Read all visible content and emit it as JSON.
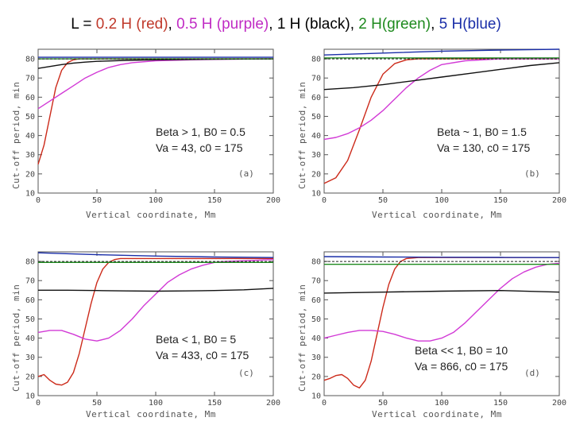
{
  "title": {
    "prefix": "L = ",
    "parts": [
      {
        "text": "0.2 H (red)",
        "color": "#c0392b"
      },
      {
        "text": "0.5 H (purple)",
        "color": "#c02bc4"
      },
      {
        "text": "1 H (black)",
        "color": "#000000"
      },
      {
        "text": "2 H(green)",
        "color": "#1e8a1e"
      },
      {
        "text": "5 H(blue)",
        "color": "#1a2ea8"
      }
    ],
    "separator": ", "
  },
  "chart_data": [
    {
      "type": "line",
      "panel_tag": "(a)",
      "xlabel": "Vertical coordinate, Mm",
      "ylabel": "Cut-off period, min",
      "xlim": [
        0,
        200
      ],
      "ylim": [
        10,
        85
      ],
      "xticks": [
        0,
        50,
        100,
        150,
        200
      ],
      "yticks": [
        10,
        20,
        30,
        40,
        50,
        60,
        70,
        80
      ],
      "annotation": [
        "Beta > 1, B0 = 0.5",
        "Va = 43, c0 = 175"
      ],
      "reference_line": {
        "y": 80,
        "style": "dashed"
      },
      "series": [
        {
          "name": "0.2 H",
          "color": "#cc2a1a",
          "x": [
            0,
            5,
            10,
            15,
            20,
            25,
            30,
            35,
            40,
            50,
            60,
            80,
            100,
            150,
            200
          ],
          "y": [
            25,
            35,
            50,
            65,
            74,
            78,
            79.5,
            80,
            80,
            80,
            80,
            80,
            80,
            80,
            80
          ]
        },
        {
          "name": "0.5 H",
          "color": "#d23ad6",
          "x": [
            0,
            10,
            20,
            30,
            40,
            50,
            60,
            70,
            80,
            100,
            130,
            160,
            200
          ],
          "y": [
            54,
            58,
            62,
            66,
            70,
            73,
            75.5,
            77,
            78,
            79,
            79.5,
            79.8,
            80
          ]
        },
        {
          "name": "1 H",
          "color": "#111111",
          "x": [
            0,
            10,
            20,
            30,
            40,
            50,
            75,
            100,
            150,
            200
          ],
          "y": [
            75,
            76,
            77,
            77.8,
            78.3,
            78.7,
            79.2,
            79.5,
            79.8,
            80
          ]
        },
        {
          "name": "2 H",
          "color": "#1e8a1e",
          "x": [
            0,
            50,
            100,
            150,
            200
          ],
          "y": [
            80,
            80,
            80,
            80,
            80
          ]
        },
        {
          "name": "5 H",
          "color": "#1a2ea8",
          "x": [
            0,
            50,
            100,
            150,
            200
          ],
          "y": [
            80.8,
            80.8,
            80.8,
            80.8,
            80.8
          ]
        }
      ]
    },
    {
      "type": "line",
      "panel_tag": "(b)",
      "xlabel": "Vertical coordinate, Mm",
      "ylabel": "Cut-off period, min",
      "xlim": [
        0,
        200
      ],
      "ylim": [
        10,
        85
      ],
      "xticks": [
        0,
        50,
        100,
        150,
        200
      ],
      "yticks": [
        10,
        20,
        30,
        40,
        50,
        60,
        70,
        80
      ],
      "annotation": [
        "Beta ~ 1, B0 = 1.5",
        "Va = 130, c0 = 175"
      ],
      "reference_line": {
        "y": 80,
        "style": "dashed"
      },
      "series": [
        {
          "name": "0.2 H",
          "color": "#cc2a1a",
          "x": [
            0,
            10,
            20,
            30,
            40,
            50,
            60,
            70,
            80,
            100,
            150,
            200
          ],
          "y": [
            15,
            18,
            27,
            43,
            60,
            72,
            77.5,
            79.5,
            80,
            80,
            80,
            80
          ]
        },
        {
          "name": "0.5 H",
          "color": "#d23ad6",
          "x": [
            0,
            10,
            20,
            30,
            40,
            50,
            60,
            70,
            80,
            90,
            100,
            120,
            150,
            200
          ],
          "y": [
            38,
            39,
            41,
            44,
            48,
            53,
            59,
            65,
            70,
            74,
            77,
            79,
            80,
            80
          ]
        },
        {
          "name": "1 H",
          "color": "#111111",
          "x": [
            0,
            25,
            50,
            75,
            100,
            125,
            150,
            175,
            200
          ],
          "y": [
            64,
            65,
            66.5,
            68.5,
            70.5,
            72.5,
            74.5,
            76.5,
            78
          ]
        },
        {
          "name": "2 H",
          "color": "#1e8a1e",
          "x": [
            0,
            50,
            100,
            150,
            200
          ],
          "y": [
            80.5,
            80.5,
            80.5,
            80.5,
            80.5
          ]
        },
        {
          "name": "5 H",
          "color": "#1a2ea8",
          "x": [
            0,
            50,
            100,
            150,
            200
          ],
          "y": [
            82,
            83,
            84,
            84.6,
            85
          ]
        }
      ]
    },
    {
      "type": "line",
      "panel_tag": "(c)",
      "xlabel": "Vertical coordinate, Mm",
      "ylabel": "Cut-off period, min",
      "xlim": [
        0,
        200
      ],
      "ylim": [
        10,
        85
      ],
      "xticks": [
        0,
        50,
        100,
        150,
        200
      ],
      "yticks": [
        10,
        20,
        30,
        40,
        50,
        60,
        70,
        80
      ],
      "annotation": [
        "Beta < 1, B0 = 5",
        "Va = 433, c0 = 175"
      ],
      "reference_line": {
        "y": 80,
        "style": "dashed"
      },
      "series": [
        {
          "name": "0.2 H",
          "color": "#cc2a1a",
          "x": [
            0,
            5,
            10,
            15,
            20,
            25,
            30,
            35,
            40,
            45,
            50,
            55,
            60,
            65,
            70,
            80,
            100,
            150,
            200
          ],
          "y": [
            20,
            21,
            18,
            16,
            15.5,
            17,
            22,
            32,
            45,
            58,
            69,
            76,
            79.5,
            81,
            81.5,
            81.5,
            81.5,
            81.5,
            81.5
          ]
        },
        {
          "name": "0.5 H",
          "color": "#d23ad6",
          "x": [
            0,
            10,
            20,
            30,
            40,
            50,
            60,
            70,
            80,
            90,
            100,
            110,
            120,
            130,
            140,
            150,
            160,
            180,
            200
          ],
          "y": [
            43,
            44,
            44,
            42,
            39.5,
            38.5,
            40,
            44,
            50,
            57,
            63,
            69,
            73,
            76,
            78,
            79.5,
            80,
            80.5,
            81
          ]
        },
        {
          "name": "1 H",
          "color": "#111111",
          "x": [
            0,
            25,
            50,
            75,
            100,
            125,
            150,
            175,
            200
          ],
          "y": [
            65,
            65,
            64.8,
            64.6,
            64.5,
            64.6,
            64.8,
            65.2,
            66
          ]
        },
        {
          "name": "2 H",
          "color": "#1e8a1e",
          "x": [
            0,
            50,
            100,
            150,
            200
          ],
          "y": [
            79.5,
            79.5,
            79.5,
            79.5,
            79.5
          ]
        },
        {
          "name": "5 H",
          "color": "#1a2ea8",
          "x": [
            0,
            50,
            100,
            150,
            200
          ],
          "y": [
            84.5,
            83.5,
            82.8,
            82.3,
            82
          ]
        }
      ]
    },
    {
      "type": "line",
      "panel_tag": "(d)",
      "xlabel": "Vertical coordinate, Mm",
      "ylabel": "Cut-off period, min",
      "xlim": [
        0,
        200
      ],
      "ylim": [
        10,
        85
      ],
      "xticks": [
        0,
        50,
        100,
        150,
        200
      ],
      "yticks": [
        10,
        20,
        30,
        40,
        50,
        60,
        70,
        80
      ],
      "annotation": [
        "Beta << 1, B0 = 10",
        "Va = 866, c0 = 175"
      ],
      "reference_line": {
        "y": 80,
        "style": "dashed"
      },
      "series": [
        {
          "name": "0.2 H",
          "color": "#cc2a1a",
          "x": [
            0,
            5,
            10,
            15,
            20,
            25,
            30,
            35,
            40,
            45,
            50,
            55,
            60,
            65,
            70,
            80,
            100,
            150,
            200
          ],
          "y": [
            18,
            19,
            20.5,
            21,
            19,
            15.5,
            14,
            18,
            28,
            42,
            56,
            68,
            76,
            80,
            81.5,
            82,
            82,
            82,
            82
          ]
        },
        {
          "name": "0.5 H",
          "color": "#d23ad6",
          "x": [
            0,
            10,
            20,
            30,
            40,
            50,
            60,
            70,
            80,
            90,
            100,
            110,
            120,
            130,
            140,
            150,
            160,
            170,
            180,
            190,
            200
          ],
          "y": [
            40,
            41.5,
            43,
            44,
            44,
            43.5,
            42,
            40,
            38.5,
            38.5,
            40,
            43,
            48,
            54,
            60,
            66,
            71,
            74.5,
            77,
            78.5,
            79
          ]
        },
        {
          "name": "1 H",
          "color": "#111111",
          "x": [
            0,
            50,
            100,
            150,
            200
          ],
          "y": [
            63.5,
            64,
            64.5,
            64.8,
            64
          ]
        },
        {
          "name": "2 H",
          "color": "#1e8a1e",
          "x": [
            0,
            50,
            100,
            150,
            200
          ],
          "y": [
            78.5,
            78.5,
            78.5,
            78.5,
            78.5
          ]
        },
        {
          "name": "5 H",
          "color": "#1a2ea8",
          "x": [
            0,
            50,
            100,
            150,
            200
          ],
          "y": [
            82.5,
            82.3,
            82.2,
            82.1,
            82
          ]
        }
      ]
    }
  ]
}
